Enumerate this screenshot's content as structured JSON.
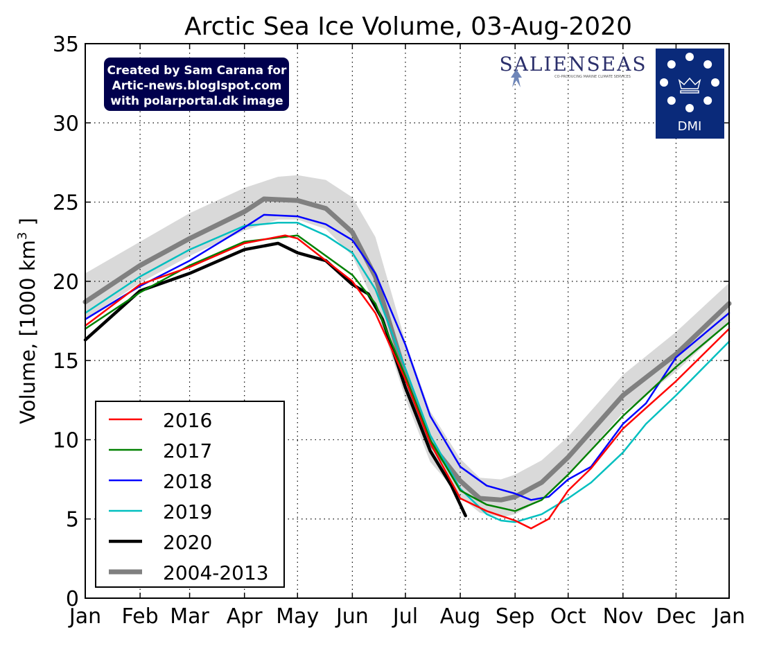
{
  "chart_data": {
    "type": "line",
    "title": "Arctic Sea Ice Volume, 03-Aug-2020",
    "xlabel": "",
    "ylabel": "Volume, [1000 km³ ]",
    "ylabel_parts": {
      "pre": "Volume, [1000 km",
      "sup": "3",
      "post": " ]"
    },
    "ylim": [
      0,
      35
    ],
    "yticks": [
      0,
      5,
      10,
      15,
      20,
      25,
      30,
      35
    ],
    "xlim": [
      "01-01",
      "12-31"
    ],
    "xticks": [
      {
        "date": "01-01",
        "label": "Jan"
      },
      {
        "date": "02-01",
        "label": "Feb"
      },
      {
        "date": "03-01",
        "label": "Mar"
      },
      {
        "date": "04-01",
        "label": "Apr"
      },
      {
        "date": "05-01",
        "label": "May"
      },
      {
        "date": "06-01",
        "label": "Jun"
      },
      {
        "date": "07-01",
        "label": "Jul"
      },
      {
        "date": "08-01",
        "label": "Aug"
      },
      {
        "date": "09-01",
        "label": "Sep"
      },
      {
        "date": "10-01",
        "label": "Oct"
      },
      {
        "date": "11-01",
        "label": "Nov"
      },
      {
        "date": "12-01",
        "label": "Dec"
      },
      {
        "date": "12-31",
        "label": "Jan"
      }
    ],
    "grid": true,
    "legend_position": "bottom-left",
    "band": {
      "color": "#d9d9d9",
      "points": [
        [
          "01-01",
          17.6,
          20.5
        ],
        [
          "02-01",
          19.9,
          22.5
        ],
        [
          "03-01",
          21.6,
          24.3
        ],
        [
          "04-01",
          23.2,
          25.9
        ],
        [
          "04-20",
          23.9,
          26.6
        ],
        [
          "05-01",
          23.9,
          26.7
        ],
        [
          "05-17",
          23.3,
          26.4
        ],
        [
          "06-01",
          21.6,
          25.3
        ],
        [
          "06-14",
          18.5,
          22.8
        ],
        [
          "07-01",
          12.6,
          16.2
        ],
        [
          "07-15",
          8.6,
          11.8
        ],
        [
          "08-01",
          6.4,
          8.8
        ],
        [
          "08-12",
          5.4,
          7.6
        ],
        [
          "08-24",
          5.1,
          7.5
        ],
        [
          "09-01",
          5.3,
          7.8
        ],
        [
          "09-16",
          6.2,
          8.7
        ],
        [
          "10-01",
          7.8,
          10.2
        ],
        [
          "11-01",
          11.7,
          14.1
        ],
        [
          "12-01",
          14.3,
          16.8
        ],
        [
          "12-31",
          17.4,
          19.9
        ]
      ]
    },
    "series": [
      {
        "name": "2016",
        "color": "#ff0000",
        "width": 2.5,
        "points": [
          [
            "01-01",
            17.2
          ],
          [
            "02-01",
            19.8
          ],
          [
            "03-01",
            20.9
          ],
          [
            "04-01",
            22.4
          ],
          [
            "04-24",
            22.9
          ],
          [
            "05-01",
            22.7
          ],
          [
            "06-01",
            20.0
          ],
          [
            "06-14",
            18.0
          ],
          [
            "07-01",
            13.8
          ],
          [
            "07-15",
            9.8
          ],
          [
            "08-01",
            6.3
          ],
          [
            "08-16",
            5.5
          ],
          [
            "09-01",
            4.9
          ],
          [
            "09-10",
            4.4
          ],
          [
            "09-20",
            5.0
          ],
          [
            "10-01",
            6.8
          ],
          [
            "10-14",
            8.2
          ],
          [
            "11-01",
            10.7
          ],
          [
            "11-14",
            12.0
          ],
          [
            "12-01",
            13.7
          ],
          [
            "12-31",
            17.0
          ]
        ]
      },
      {
        "name": "2017",
        "color": "#008000",
        "width": 2.5,
        "points": [
          [
            "01-01",
            17.0
          ],
          [
            "02-01",
            19.3
          ],
          [
            "03-01",
            21.0
          ],
          [
            "04-01",
            22.5
          ],
          [
            "05-01",
            22.9
          ],
          [
            "06-01",
            20.4
          ],
          [
            "06-14",
            18.6
          ],
          [
            "07-01",
            14.0
          ],
          [
            "07-15",
            10.0
          ],
          [
            "08-01",
            6.8
          ],
          [
            "08-16",
            5.9
          ],
          [
            "09-01",
            5.5
          ],
          [
            "09-16",
            6.2
          ],
          [
            "10-01",
            7.8
          ],
          [
            "11-01",
            11.5
          ],
          [
            "12-01",
            14.6
          ],
          [
            "12-31",
            17.4
          ]
        ]
      },
      {
        "name": "2018",
        "color": "#0000ff",
        "width": 2.5,
        "points": [
          [
            "01-01",
            17.6
          ],
          [
            "02-01",
            19.7
          ],
          [
            "03-01",
            21.3
          ],
          [
            "04-01",
            23.4
          ],
          [
            "04-12",
            24.2
          ],
          [
            "05-01",
            24.1
          ],
          [
            "05-17",
            23.6
          ],
          [
            "06-01",
            22.6
          ],
          [
            "06-14",
            20.5
          ],
          [
            "07-01",
            16.0
          ],
          [
            "07-15",
            11.5
          ],
          [
            "08-01",
            8.3
          ],
          [
            "08-16",
            7.1
          ],
          [
            "09-01",
            6.6
          ],
          [
            "09-10",
            6.2
          ],
          [
            "09-20",
            6.4
          ],
          [
            "10-01",
            7.5
          ],
          [
            "10-14",
            8.3
          ],
          [
            "11-01",
            11.0
          ],
          [
            "11-14",
            12.3
          ],
          [
            "12-01",
            15.2
          ],
          [
            "12-31",
            18.0
          ]
        ]
      },
      {
        "name": "2019",
        "color": "#00bfbf",
        "width": 2.5,
        "points": [
          [
            "01-01",
            18.0
          ],
          [
            "02-01",
            20.3
          ],
          [
            "03-01",
            22.0
          ],
          [
            "04-01",
            23.5
          ],
          [
            "04-20",
            23.7
          ],
          [
            "05-01",
            23.7
          ],
          [
            "05-17",
            22.9
          ],
          [
            "06-01",
            21.8
          ],
          [
            "06-14",
            19.5
          ],
          [
            "07-01",
            14.5
          ],
          [
            "07-15",
            10.3
          ],
          [
            "08-01",
            6.9
          ],
          [
            "08-16",
            5.3
          ],
          [
            "08-24",
            4.9
          ],
          [
            "09-01",
            4.8
          ],
          [
            "09-16",
            5.3
          ],
          [
            "10-01",
            6.3
          ],
          [
            "10-14",
            7.3
          ],
          [
            "11-01",
            9.2
          ],
          [
            "11-14",
            11.0
          ],
          [
            "12-01",
            12.8
          ],
          [
            "12-31",
            16.2
          ]
        ]
      },
      {
        "name": "2020",
        "color": "#000000",
        "width": 4.5,
        "points": [
          [
            "01-01",
            16.3
          ],
          [
            "02-01",
            19.4
          ],
          [
            "03-01",
            20.5
          ],
          [
            "04-01",
            22.0
          ],
          [
            "04-20",
            22.4
          ],
          [
            "05-01",
            21.8
          ],
          [
            "05-17",
            21.3
          ],
          [
            "06-01",
            19.8
          ],
          [
            "06-10",
            19.2
          ],
          [
            "06-18",
            17.6
          ],
          [
            "07-01",
            13.3
          ],
          [
            "07-15",
            9.3
          ],
          [
            "07-27",
            7.1
          ],
          [
            "08-04",
            5.2
          ]
        ]
      },
      {
        "name": "2004-2013",
        "color": "#808080",
        "width": 7,
        "points": [
          [
            "01-01",
            18.7
          ],
          [
            "02-01",
            21.0
          ],
          [
            "03-01",
            22.7
          ],
          [
            "04-01",
            24.4
          ],
          [
            "04-12",
            25.2
          ],
          [
            "05-01",
            25.1
          ],
          [
            "05-17",
            24.6
          ],
          [
            "06-01",
            23.1
          ],
          [
            "06-14",
            20.3
          ],
          [
            "07-01",
            14.1
          ],
          [
            "07-15",
            9.8
          ],
          [
            "08-01",
            7.4
          ],
          [
            "08-12",
            6.3
          ],
          [
            "08-24",
            6.2
          ],
          [
            "09-01",
            6.4
          ],
          [
            "09-16",
            7.3
          ],
          [
            "10-01",
            8.9
          ],
          [
            "11-01",
            12.8
          ],
          [
            "12-01",
            15.4
          ],
          [
            "12-31",
            18.6
          ]
        ]
      }
    ]
  },
  "annotation": {
    "lines": [
      "Created by Sam Carana for",
      "Artic-news.blogIspot.com",
      "with polarportal.dk image"
    ],
    "bg": "#00004d"
  },
  "logos": {
    "salienseas": {
      "name": "SALIENSEAS",
      "tagline": "CO-PRODUCING MARINE CLIMATE SERVICES"
    },
    "dmi": {
      "name": "DMI",
      "bg": "#0a2a7a"
    }
  }
}
